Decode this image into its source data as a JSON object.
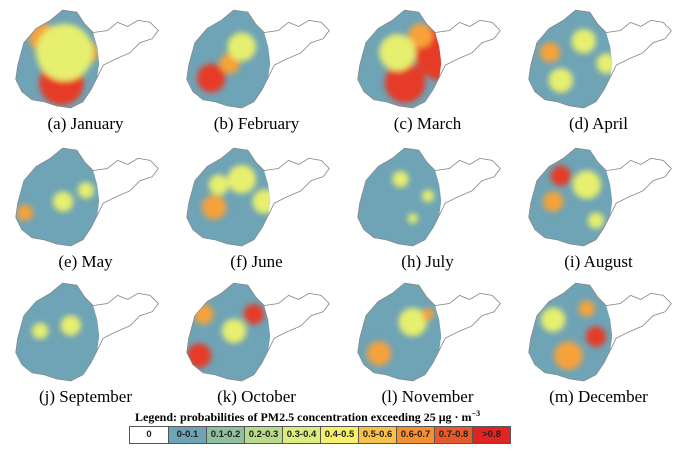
{
  "panels": [
    {
      "label": "(a) January",
      "blobs": [
        [
          "red",
          0.34,
          0.72,
          22
        ],
        [
          "orange",
          0.22,
          0.32,
          14
        ],
        [
          "orange",
          0.5,
          0.45,
          12
        ],
        [
          "yellow",
          0.36,
          0.45,
          28
        ]
      ]
    },
    {
      "label": "(b) February",
      "blobs": [
        [
          "red",
          0.2,
          0.68,
          14
        ],
        [
          "orange",
          0.32,
          0.55,
          10
        ],
        [
          "yellow",
          0.4,
          0.4,
          14
        ]
      ]
    },
    {
      "label": "(c) March",
      "blobs": [
        [
          "red",
          0.6,
          0.45,
          28
        ],
        [
          "red",
          0.35,
          0.72,
          20
        ],
        [
          "orange",
          0.45,
          0.3,
          12
        ],
        [
          "yellow",
          0.3,
          0.45,
          18
        ]
      ]
    },
    {
      "label": "(d) April",
      "blobs": [
        [
          "orange",
          0.18,
          0.45,
          10
        ],
        [
          "yellow",
          0.4,
          0.35,
          12
        ],
        [
          "yellow",
          0.55,
          0.55,
          10
        ],
        [
          "yellow",
          0.25,
          0.7,
          12
        ]
      ]
    },
    {
      "label": "(e) May",
      "blobs": [
        [
          "orange",
          0.1,
          0.65,
          8
        ],
        [
          "yellow",
          0.35,
          0.55,
          10
        ],
        [
          "yellow",
          0.5,
          0.45,
          8
        ]
      ]
    },
    {
      "label": "(f) June",
      "blobs": [
        [
          "orange",
          0.22,
          0.6,
          12
        ],
        [
          "yellow",
          0.4,
          0.35,
          14
        ],
        [
          "yellow",
          0.55,
          0.55,
          12
        ],
        [
          "yellow",
          0.25,
          0.4,
          10
        ]
      ]
    },
    {
      "label": "(h) July",
      "blobs": [
        [
          "yellow",
          0.32,
          0.35,
          8
        ],
        [
          "yellow",
          0.5,
          0.5,
          6
        ],
        [
          "yellow",
          0.4,
          0.7,
          5
        ]
      ]
    },
    {
      "label": "(i) August",
      "blobs": [
        [
          "red",
          0.25,
          0.32,
          10
        ],
        [
          "orange",
          0.2,
          0.55,
          10
        ],
        [
          "yellow",
          0.42,
          0.4,
          14
        ],
        [
          "yellow",
          0.48,
          0.72,
          8
        ]
      ]
    },
    {
      "label": "(j) September",
      "blobs": [
        [
          "yellow",
          0.4,
          0.45,
          10
        ],
        [
          "yellow",
          0.2,
          0.5,
          8
        ]
      ]
    },
    {
      "label": "(k) October",
      "blobs": [
        [
          "red",
          0.12,
          0.72,
          12
        ],
        [
          "orange",
          0.15,
          0.35,
          10
        ],
        [
          "red",
          0.48,
          0.35,
          10
        ],
        [
          "yellow",
          0.35,
          0.5,
          12
        ]
      ]
    },
    {
      "label": "(l) November",
      "blobs": [
        [
          "orange",
          0.18,
          0.7,
          12
        ],
        [
          "yellow",
          0.4,
          0.42,
          14
        ],
        [
          "orange",
          0.5,
          0.35,
          6
        ]
      ]
    },
    {
      "label": "(m) December",
      "blobs": [
        [
          "red",
          0.48,
          0.55,
          10
        ],
        [
          "orange",
          0.3,
          0.72,
          14
        ],
        [
          "yellow",
          0.2,
          0.4,
          12
        ],
        [
          "orange",
          0.42,
          0.3,
          8
        ]
      ]
    }
  ],
  "legend": {
    "title_prefix": "Legend: probabilities  of PM2.5 concentration  exceeding  25 μg · m",
    "title_exp": "−3",
    "items": [
      {
        "label": "0",
        "color": "#ffffff"
      },
      {
        "label": "0-0.1",
        "color": "#6fa3b6"
      },
      {
        "label": "0.1-0.2",
        "color": "#90bfa0"
      },
      {
        "label": "0.2-0.3",
        "color": "#b9d98b"
      },
      {
        "label": "0.3-0.4",
        "color": "#dcec7e"
      },
      {
        "label": "0.4-0.5",
        "color": "#f7f16a"
      },
      {
        "label": "0.5-0.6",
        "color": "#f9c04a"
      },
      {
        "label": "0.6-0.7",
        "color": "#f4902f"
      },
      {
        "label": "0.7-0.8",
        "color": "#e8592a"
      },
      {
        "label": ">0.8",
        "color": "#e02323"
      }
    ]
  },
  "colors": {
    "base": "#6fa3b6",
    "yellow": "#e6ef6e",
    "orange": "#f5a23a",
    "red": "#e63a26",
    "outline": "#888888"
  }
}
